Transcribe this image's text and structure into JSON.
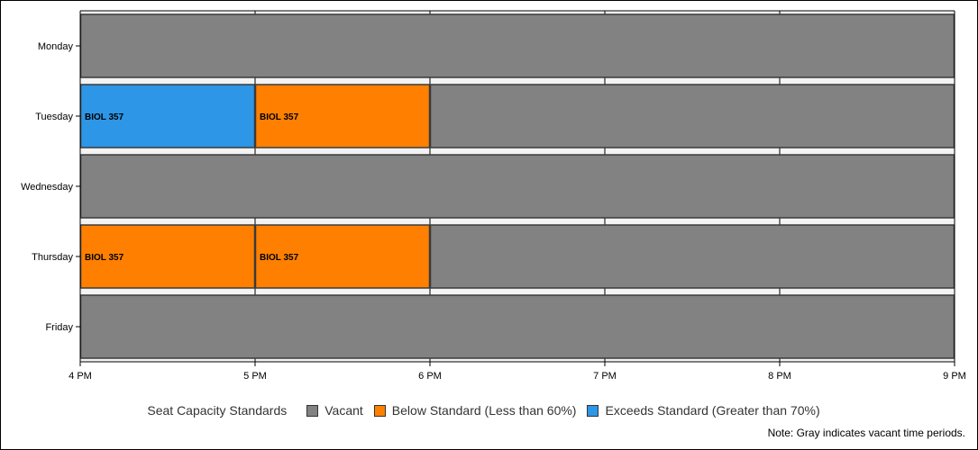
{
  "chart_data": {
    "type": "bar",
    "orientation": "horizontal-timeline",
    "categories": [
      "Monday",
      "Tuesday",
      "Wednesday",
      "Thursday",
      "Friday"
    ],
    "x_ticks": [
      "4 PM",
      "5 PM",
      "6 PM",
      "7 PM",
      "8 PM",
      "9 PM"
    ],
    "xlim": [
      16,
      21
    ],
    "segments": [
      {
        "day": "Monday",
        "start": 16,
        "end": 21,
        "status": "vacant",
        "label": ""
      },
      {
        "day": "Tuesday",
        "start": 16,
        "end": 17,
        "status": "exceeds",
        "label": "BIOL 357"
      },
      {
        "day": "Tuesday",
        "start": 17,
        "end": 18,
        "status": "below",
        "label": "BIOL 357"
      },
      {
        "day": "Tuesday",
        "start": 18,
        "end": 21,
        "status": "vacant",
        "label": ""
      },
      {
        "day": "Wednesday",
        "start": 16,
        "end": 21,
        "status": "vacant",
        "label": ""
      },
      {
        "day": "Thursday",
        "start": 16,
        "end": 17,
        "status": "below",
        "label": "BIOL 357"
      },
      {
        "day": "Thursday",
        "start": 17,
        "end": 18,
        "status": "below",
        "label": "BIOL 357"
      },
      {
        "day": "Thursday",
        "start": 18,
        "end": 21,
        "status": "vacant",
        "label": ""
      },
      {
        "day": "Friday",
        "start": 16,
        "end": 21,
        "status": "vacant",
        "label": ""
      }
    ],
    "colors": {
      "vacant": "#828282",
      "below": "#FF8000",
      "exceeds": "#2D96E6"
    },
    "legend": {
      "title": "Seat Capacity Standards",
      "placement": "bottom",
      "items": [
        {
          "key": "vacant",
          "label": "Vacant"
        },
        {
          "key": "below",
          "label": "Below Standard (Less than 60%)"
        },
        {
          "key": "exceeds",
          "label": "Exceeds Standard (Greater than 70%)"
        }
      ]
    },
    "note": "Note: Gray indicates vacant time periods.",
    "grid": true
  }
}
